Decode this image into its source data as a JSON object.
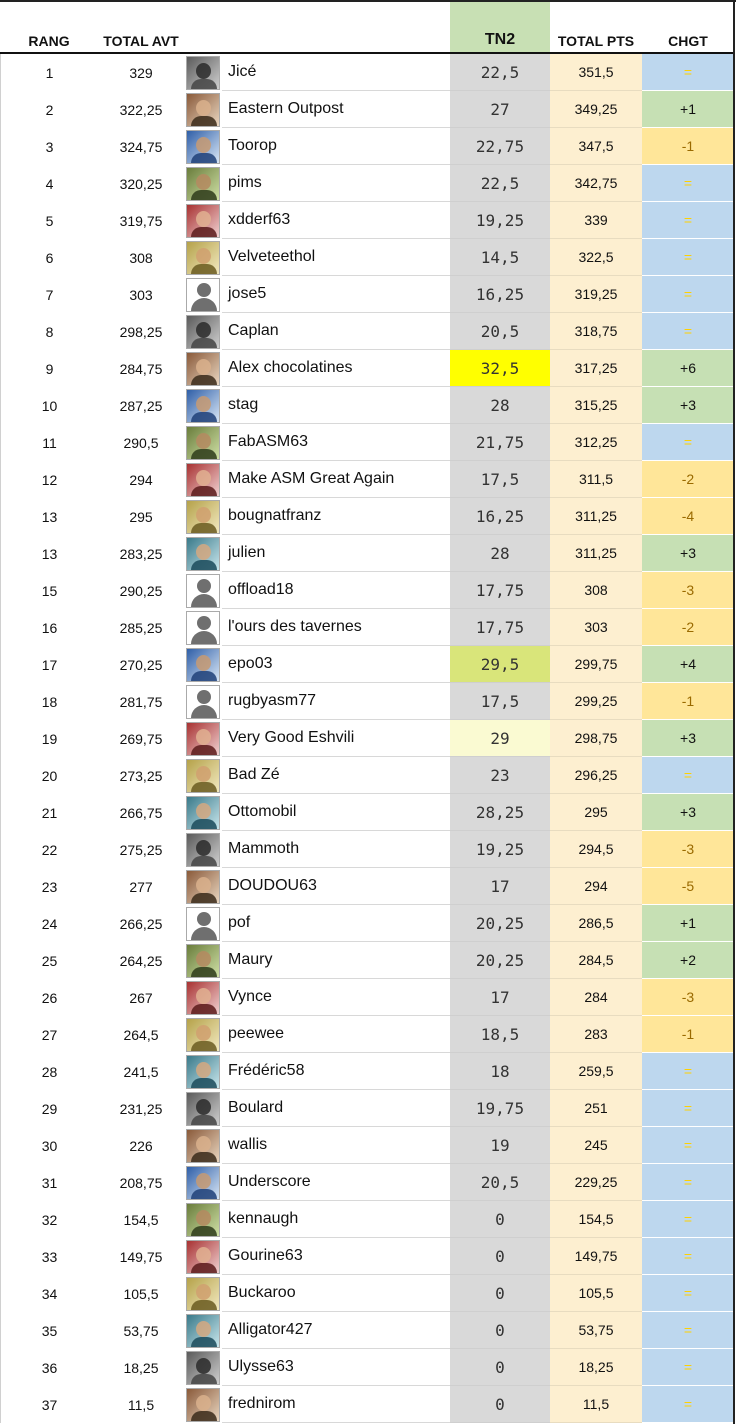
{
  "header": {
    "rang": "RANG",
    "total_avt": "TOTAL AVT",
    "tn2": "TN2",
    "total_pts": "TOTAL PTS",
    "chgt": "CHGT"
  },
  "colors": {
    "tn2_header": "#c8e0b4",
    "tn2_column": "#d9d9d9",
    "total_pts_column": "#fdefd0",
    "chgt_equal": "#bdd7ee",
    "chgt_up": "#c6e0b4",
    "chgt_down": "#ffe699",
    "tn2_highlight_best": "#ffff00",
    "tn2_highlight_second": "#d9e57a",
    "tn2_highlight_third": "#fafad2"
  },
  "rows": [
    {
      "rang": "1",
      "total_avt": "329",
      "name": "Jicé",
      "tn2": "22,5",
      "total_pts": "351,5",
      "chgt": "=",
      "avatar": "photo-avatar"
    },
    {
      "rang": "2",
      "total_avt": "322,25",
      "name": "Eastern Outpost",
      "tn2": "27",
      "total_pts": "349,25",
      "chgt": "+1",
      "avatar": "scarlets-logo-avatar"
    },
    {
      "rang": "3",
      "total_avt": "324,75",
      "name": "Toorop",
      "tn2": "22,75",
      "total_pts": "347,5",
      "chgt": "-1",
      "avatar": "photo-avatar"
    },
    {
      "rang": "4",
      "total_avt": "320,25",
      "name": "pims",
      "tn2": "22,5",
      "total_pts": "342,75",
      "chgt": "=",
      "avatar": "meme-face-avatar"
    },
    {
      "rang": "5",
      "total_avt": "319,75",
      "name": "xdderf63",
      "tn2": "19,25",
      "total_pts": "339",
      "chgt": "=",
      "avatar": "photo-avatar"
    },
    {
      "rang": "6",
      "total_avt": "308",
      "name": "Velveteethol",
      "tn2": "14,5",
      "total_pts": "322,5",
      "chgt": "=",
      "avatar": "pirate-flag-avatar"
    },
    {
      "rang": "7",
      "total_avt": "303",
      "name": "jose5",
      "tn2": "16,25",
      "total_pts": "319,25",
      "chgt": "=",
      "avatar": "default-avatar"
    },
    {
      "rang": "8",
      "total_avt": "298,25",
      "name": "Caplan",
      "tn2": "20,5",
      "total_pts": "318,75",
      "chgt": "=",
      "avatar": "photo-avatar"
    },
    {
      "rang": "9",
      "total_avt": "284,75",
      "name": "Alex chocolatines",
      "tn2": "32,5",
      "total_pts": "317,25",
      "chgt": "+6",
      "avatar": "stade-toulousain-avatar"
    },
    {
      "rang": "10",
      "total_avt": "287,25",
      "name": "stag",
      "tn2": "28",
      "total_pts": "315,25",
      "chgt": "+3",
      "avatar": "photo-avatar"
    },
    {
      "rang": "11",
      "total_avt": "290,5",
      "name": "FabASM63",
      "tn2": "21,75",
      "total_pts": "312,25",
      "chgt": "=",
      "avatar": "photo-avatar"
    },
    {
      "rang": "12",
      "total_avt": "294",
      "name": "Make ASM Great Again",
      "tn2": "17,5",
      "total_pts": "311,5",
      "chgt": "-2",
      "avatar": "photo-avatar"
    },
    {
      "rang": "13",
      "total_avt": "295",
      "name": "bougnatfranz",
      "tn2": "16,25",
      "total_pts": "311,25",
      "chgt": "-4",
      "avatar": "photo-avatar"
    },
    {
      "rang": "13",
      "total_avt": "283,25",
      "name": "julien",
      "tn2": "28",
      "total_pts": "311,25",
      "chgt": "+3",
      "avatar": "photo-avatar"
    },
    {
      "rang": "15",
      "total_avt": "290,25",
      "name": "offload18",
      "tn2": "17,75",
      "total_pts": "308",
      "chgt": "-3",
      "avatar": "default-avatar"
    },
    {
      "rang": "16",
      "total_avt": "285,25",
      "name": "l'ours des tavernes",
      "tn2": "17,75",
      "total_pts": "303",
      "chgt": "-2",
      "avatar": "default-avatar"
    },
    {
      "rang": "17",
      "total_avt": "270,25",
      "name": "epo03",
      "tn2": "29,5",
      "total_pts": "299,75",
      "chgt": "+4",
      "avatar": "photo-avatar"
    },
    {
      "rang": "18",
      "total_avt": "281,75",
      "name": "rugbyasm77",
      "tn2": "17,5",
      "total_pts": "299,25",
      "chgt": "-1",
      "avatar": "default-avatar"
    },
    {
      "rang": "19",
      "total_avt": "269,75",
      "name": "Very Good Eshvili",
      "tn2": "29",
      "total_pts": "298,75",
      "chgt": "+3",
      "avatar": "photo-avatar"
    },
    {
      "rang": "20",
      "total_avt": "273,25",
      "name": "Bad Zé",
      "tn2": "23",
      "total_pts": "296,25",
      "chgt": "=",
      "avatar": "photo-avatar"
    },
    {
      "rang": "21",
      "total_avt": "266,75",
      "name": "Ottomobil",
      "tn2": "28,25",
      "total_pts": "295",
      "chgt": "+3",
      "avatar": "photo-avatar"
    },
    {
      "rang": "22",
      "total_avt": "275,25",
      "name": "Mammoth",
      "tn2": "19,25",
      "total_pts": "294,5",
      "chgt": "-3",
      "avatar": "photo-avatar"
    },
    {
      "rang": "23",
      "total_avt": "277",
      "name": "DOUDOU63",
      "tn2": "17",
      "total_pts": "294",
      "chgt": "-5",
      "avatar": "photo-avatar"
    },
    {
      "rang": "24",
      "total_avt": "266,25",
      "name": "pof",
      "tn2": "20,25",
      "total_pts": "286,5",
      "chgt": "+1",
      "avatar": "default-avatar"
    },
    {
      "rang": "25",
      "total_avt": "264,25",
      "name": "Maury",
      "tn2": "20,25",
      "total_pts": "284,5",
      "chgt": "+2",
      "avatar": "photo-avatar"
    },
    {
      "rang": "26",
      "total_avt": "267",
      "name": "Vynce",
      "tn2": "17",
      "total_pts": "284",
      "chgt": "-3",
      "avatar": "photo-avatar"
    },
    {
      "rang": "27",
      "total_avt": "264,5",
      "name": "peewee",
      "tn2": "18,5",
      "total_pts": "283",
      "chgt": "-1",
      "avatar": "photo-avatar"
    },
    {
      "rang": "28",
      "total_avt": "241,5",
      "name": "Frédéric58",
      "tn2": "18",
      "total_pts": "259,5",
      "chgt": "=",
      "avatar": "flag-avatar"
    },
    {
      "rang": "29",
      "total_avt": "231,25",
      "name": "Boulard",
      "tn2": "19,75",
      "total_pts": "251",
      "chgt": "=",
      "avatar": "drawing-avatar"
    },
    {
      "rang": "30",
      "total_avt": "226",
      "name": "wallis",
      "tn2": "19",
      "total_pts": "245",
      "chgt": "=",
      "avatar": "text-avatar"
    },
    {
      "rang": "31",
      "total_avt": "208,75",
      "name": "Underscore",
      "tn2": "20,5",
      "total_pts": "229,25",
      "chgt": "=",
      "avatar": "photo-avatar"
    },
    {
      "rang": "32",
      "total_avt": "154,5",
      "name": "kennaugh",
      "tn2": "0",
      "total_pts": "154,5",
      "chgt": "=",
      "avatar": "photo-avatar"
    },
    {
      "rang": "33",
      "total_avt": "149,75",
      "name": "Gourine63",
      "tn2": "0",
      "total_pts": "149,75",
      "chgt": "=",
      "avatar": "photo-avatar"
    },
    {
      "rang": "34",
      "total_avt": "105,5",
      "name": "Buckaroo",
      "tn2": "0",
      "total_pts": "105,5",
      "chgt": "=",
      "avatar": "photo-avatar"
    },
    {
      "rang": "35",
      "total_avt": "53,75",
      "name": "Alligator427",
      "tn2": "0",
      "total_pts": "53,75",
      "chgt": "=",
      "avatar": "photo-avatar"
    },
    {
      "rang": "36",
      "total_avt": "18,25",
      "name": "Ulysse63",
      "tn2": "0",
      "total_pts": "18,25",
      "chgt": "=",
      "avatar": "emblem-avatar"
    },
    {
      "rang": "37",
      "total_avt": "11,5",
      "name": "frednirom",
      "tn2": "0",
      "total_pts": "11,5",
      "chgt": "=",
      "avatar": "photo-avatar"
    }
  ]
}
